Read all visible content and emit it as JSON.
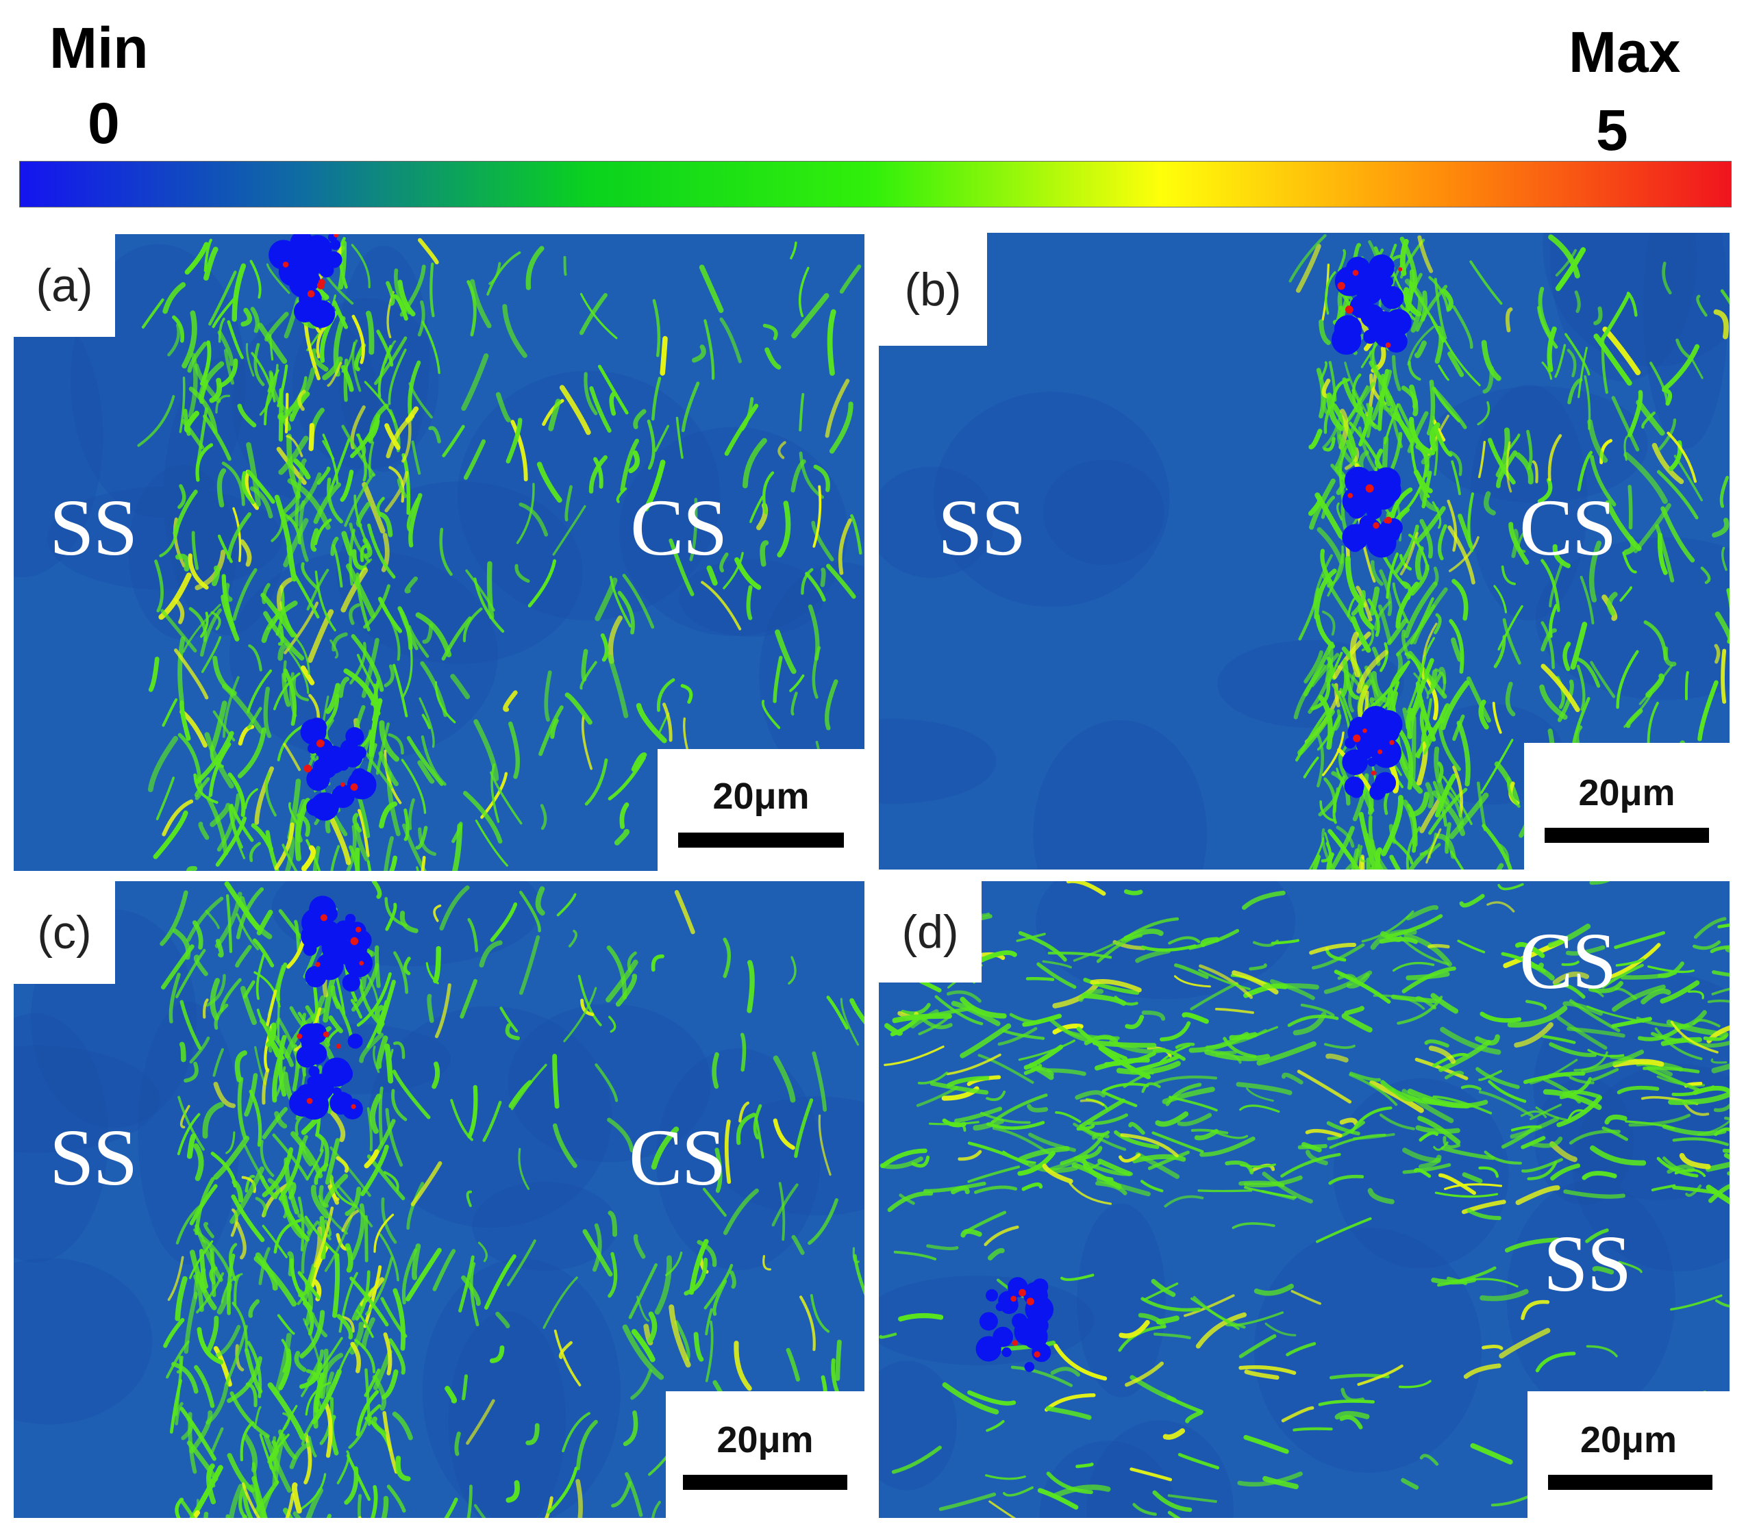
{
  "legend": {
    "min_label": "Min",
    "min_value": "0",
    "max_label": "Max",
    "max_value": "5",
    "gradient_colors": [
      "#1414f0",
      "#0f6ea0",
      "#0ad21e",
      "#32f00a",
      "#ffff0a",
      "#ff8c0a",
      "#f0141e"
    ]
  },
  "colors": {
    "base_blue": "#1e5fb4",
    "strain_green": "#5ae61e",
    "strain_yellow": "#e6f514",
    "zero_blue": "#0a14f0",
    "high_red": "#e61414"
  },
  "panels": [
    {
      "id": "a",
      "label": "(a)",
      "regions": [
        "SS",
        "CS"
      ],
      "scale_bar": "20μm"
    },
    {
      "id": "b",
      "label": "(b)",
      "regions": [
        "SS",
        "CS"
      ],
      "scale_bar": "20μm"
    },
    {
      "id": "c",
      "label": "(c)",
      "regions": [
        "SS",
        "CS"
      ],
      "scale_bar": "20μm"
    },
    {
      "id": "d",
      "label": "(d)",
      "regions": [
        "CS",
        "SS"
      ],
      "scale_bar": "20μm"
    }
  ]
}
